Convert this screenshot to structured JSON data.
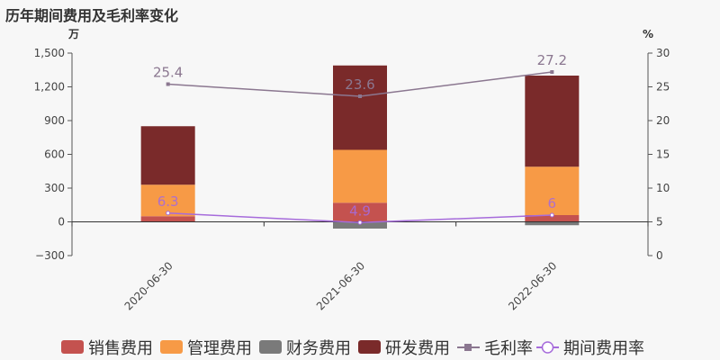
{
  "title": "历年期间费用及毛利率变化",
  "chart_data": {
    "type": "bar",
    "title": "历年期间费用及毛利率变化",
    "categories": [
      "2020-06-30",
      "2021-06-30",
      "2022-06-30"
    ],
    "left_axis": {
      "unit": "万",
      "min": -300,
      "max": 1500,
      "ticks": [
        -300,
        0,
        300,
        600,
        900,
        1200,
        1500
      ],
      "tick_labels": [
        "−300",
        "0",
        "300",
        "600",
        "900",
        "1,200",
        "1,500"
      ]
    },
    "right_axis": {
      "unit": "%",
      "min": 0,
      "max": 30,
      "ticks": [
        0,
        5,
        10,
        15,
        20,
        25,
        30
      ],
      "tick_labels": [
        "0",
        "5",
        "10",
        "15",
        "20",
        "25",
        "30"
      ]
    },
    "series": [
      {
        "name": "销售费用",
        "type": "bar",
        "axis": "left",
        "color": "#c4524f",
        "values": [
          50,
          170,
          60
        ]
      },
      {
        "name": "管理费用",
        "type": "bar",
        "axis": "left",
        "color": "#f79a46",
        "values": [
          280,
          470,
          430
        ]
      },
      {
        "name": "财务费用",
        "type": "bar",
        "axis": "left",
        "color": "#7a7a7a",
        "values": [
          0,
          -60,
          -30
        ]
      },
      {
        "name": "研发费用",
        "type": "bar",
        "axis": "left",
        "color": "#7a2a2a",
        "values": [
          520,
          750,
          810
        ]
      },
      {
        "name": "毛利率",
        "type": "line",
        "axis": "right",
        "color": "#8b7790",
        "values": [
          25.4,
          23.6,
          27.2
        ],
        "labels": [
          "25.4",
          "23.6",
          "27.2"
        ]
      },
      {
        "name": "期间费用率",
        "type": "line",
        "axis": "right",
        "color": "#a66bdb",
        "values": [
          6.3,
          4.9,
          6.0
        ],
        "labels": [
          "6.3",
          "4.9",
          "6"
        ]
      }
    ],
    "legend_position": "bottom",
    "grid": false
  }
}
